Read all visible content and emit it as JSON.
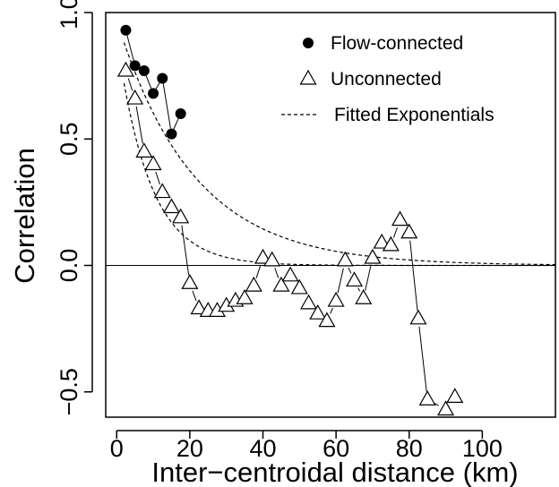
{
  "chart_data": {
    "type": "scatter",
    "xlabel": "Inter−centroidal distance (km)",
    "ylabel": "Correlation",
    "xlim": [
      -3,
      120
    ],
    "ylim": [
      -0.6,
      1.0
    ],
    "x_ticks": [
      0,
      20,
      40,
      60,
      80,
      100
    ],
    "x_tick_labels": [
      "0",
      "20",
      "40",
      "60",
      "80",
      "100"
    ],
    "y_ticks": [
      -0.5,
      0.0,
      0.5,
      1.0
    ],
    "y_tick_labels": [
      "−0.5",
      "0.0",
      "0.5",
      "1.0"
    ],
    "reference_line_y": 0,
    "grid": false,
    "box": "full",
    "legend_position": "top-right",
    "series": [
      {
        "name": "Flow-connected",
        "marker": "filled-circle",
        "color": "#000000",
        "connected": true,
        "x": [
          2.5,
          5,
          7.5,
          10,
          12.5,
          15,
          17.5
        ],
        "y": [
          0.93,
          0.79,
          0.77,
          0.68,
          0.74,
          0.52,
          0.6
        ]
      },
      {
        "name": "Unconnected",
        "marker": "open-triangle",
        "color": "#000000",
        "connected": true,
        "x": [
          2.5,
          5,
          7.5,
          10,
          12.5,
          15,
          17.5,
          20,
          22.5,
          25,
          27.5,
          30,
          32.5,
          35,
          37.5,
          40,
          42.5,
          45,
          47.5,
          50,
          52.5,
          55,
          57.5,
          60,
          62.5,
          65,
          67.5,
          70,
          72.5,
          75,
          77.5,
          80,
          82.5,
          85,
          90,
          92.5
        ],
        "y": [
          0.77,
          0.66,
          0.45,
          0.4,
          0.29,
          0.23,
          0.19,
          -0.07,
          -0.17,
          -0.18,
          -0.18,
          -0.16,
          -0.14,
          -0.13,
          -0.08,
          0.03,
          0.02,
          -0.08,
          -0.04,
          -0.09,
          -0.15,
          -0.19,
          -0.22,
          -0.14,
          0.02,
          -0.06,
          -0.13,
          0.03,
          0.09,
          0.08,
          0.18,
          0.13,
          -0.21,
          -0.53,
          -0.57,
          -0.52
        ]
      },
      {
        "name": "Fitted Exponentials",
        "line_style": "dashed",
        "color": "#000000",
        "curves": [
          {
            "intercept": 0.97,
            "decay_km": 21
          },
          {
            "intercept": 0.9,
            "decay_km": 9
          }
        ],
        "x_range": [
          2,
          120
        ]
      }
    ]
  }
}
